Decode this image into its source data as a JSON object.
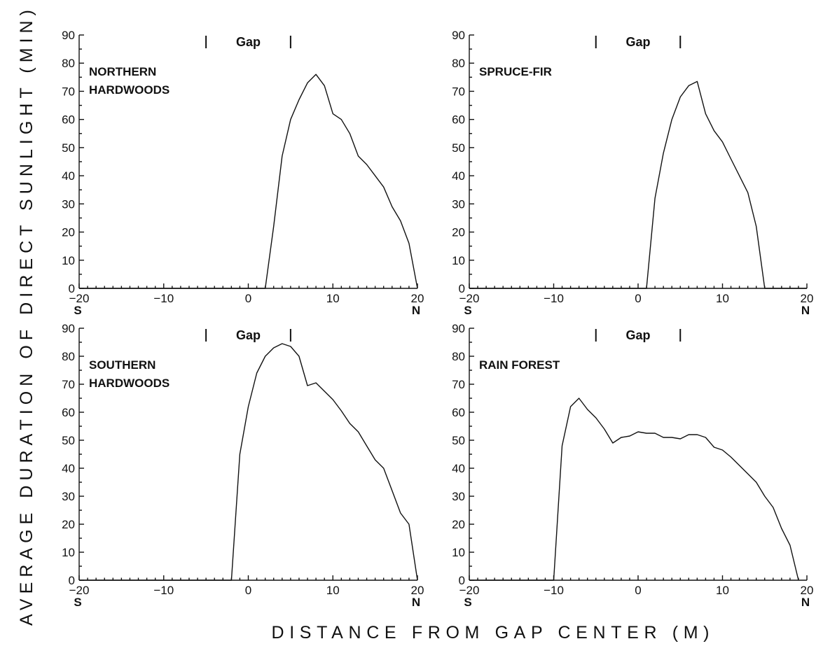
{
  "figure": {
    "ylabel": "AVERAGE DURATION OF DIRECT SUNLIGHT (MIN)",
    "xlabel": "DISTANCE FROM GAP CENTER (M)",
    "gap_label": "Gap",
    "left_end_label": "S",
    "right_end_label": "N"
  },
  "chart_data": [
    {
      "type": "line",
      "panel_label": [
        "NORTHERN",
        "HARDWOODS"
      ],
      "xlim": [
        -20,
        20
      ],
      "ylim": [
        0,
        90
      ],
      "x_ticks": [
        -20,
        -10,
        0,
        10,
        20
      ],
      "y_ticks": [
        0,
        10,
        20,
        30,
        40,
        50,
        60,
        70,
        80,
        90
      ],
      "gap": [
        -5,
        5
      ],
      "grid": false,
      "x": [
        -20,
        2,
        3,
        4,
        5,
        6,
        7,
        8,
        9,
        10,
        11,
        12,
        13,
        14,
        15,
        16,
        17,
        18,
        19,
        20
      ],
      "y": [
        0,
        0,
        22,
        47,
        60,
        67,
        73,
        76,
        72,
        62,
        60,
        55,
        47,
        44,
        40,
        36,
        29,
        24,
        16,
        0
      ]
    },
    {
      "type": "line",
      "panel_label": [
        "SPRUCE-FIR"
      ],
      "xlim": [
        -20,
        20
      ],
      "ylim": [
        0,
        90
      ],
      "x_ticks": [
        -20,
        -10,
        0,
        10,
        20
      ],
      "y_ticks": [
        0,
        10,
        20,
        30,
        40,
        50,
        60,
        70,
        80,
        90
      ],
      "gap": [
        -5,
        5
      ],
      "grid": false,
      "x": [
        -20,
        1,
        2,
        3,
        4,
        5,
        6,
        7,
        8,
        9,
        10,
        11,
        12,
        13,
        14,
        15,
        20
      ],
      "y": [
        0,
        0,
        32,
        48,
        60,
        68,
        72,
        73.5,
        62,
        56,
        52,
        46,
        40,
        34,
        22,
        0,
        0
      ]
    },
    {
      "type": "line",
      "panel_label": [
        "SOUTHERN",
        "HARDWOODS"
      ],
      "xlim": [
        -20,
        20
      ],
      "ylim": [
        0,
        90
      ],
      "x_ticks": [
        -20,
        -10,
        0,
        10,
        20
      ],
      "y_ticks": [
        0,
        10,
        20,
        30,
        40,
        50,
        60,
        70,
        80,
        90
      ],
      "gap": [
        -5,
        5
      ],
      "grid": false,
      "x": [
        -20,
        -2,
        -1,
        0,
        1,
        2,
        3,
        4,
        5,
        6,
        7,
        8,
        9,
        10,
        11,
        12,
        13,
        14,
        15,
        16,
        17,
        18,
        19,
        20
      ],
      "y": [
        0,
        0,
        45,
        62,
        74,
        80,
        83,
        84.5,
        83.5,
        80,
        69.5,
        70.5,
        67.5,
        64.5,
        60.5,
        56,
        53,
        48,
        43,
        40,
        32,
        24,
        20,
        0
      ]
    },
    {
      "type": "line",
      "panel_label": [
        "RAIN FOREST"
      ],
      "xlim": [
        -20,
        20
      ],
      "ylim": [
        0,
        90
      ],
      "x_ticks": [
        -20,
        -10,
        0,
        10,
        20
      ],
      "y_ticks": [
        0,
        10,
        20,
        30,
        40,
        50,
        60,
        70,
        80,
        90
      ],
      "gap": [
        -5,
        5
      ],
      "grid": false,
      "x": [
        -20,
        -10,
        -9,
        -8,
        -7,
        -6,
        -5,
        -4,
        -3,
        -2,
        -1,
        0,
        1,
        2,
        3,
        4,
        5,
        6,
        7,
        8,
        9,
        10,
        11,
        12,
        13,
        14,
        15,
        16,
        17,
        18,
        19
      ],
      "y": [
        0,
        0,
        48,
        62,
        65,
        61,
        58,
        54,
        49,
        51,
        51.5,
        53,
        52.5,
        52.5,
        51,
        51,
        50.5,
        52,
        52,
        51,
        47.5,
        46.5,
        44,
        41,
        38,
        35,
        30,
        26,
        18.5,
        12.5,
        0
      ]
    }
  ]
}
